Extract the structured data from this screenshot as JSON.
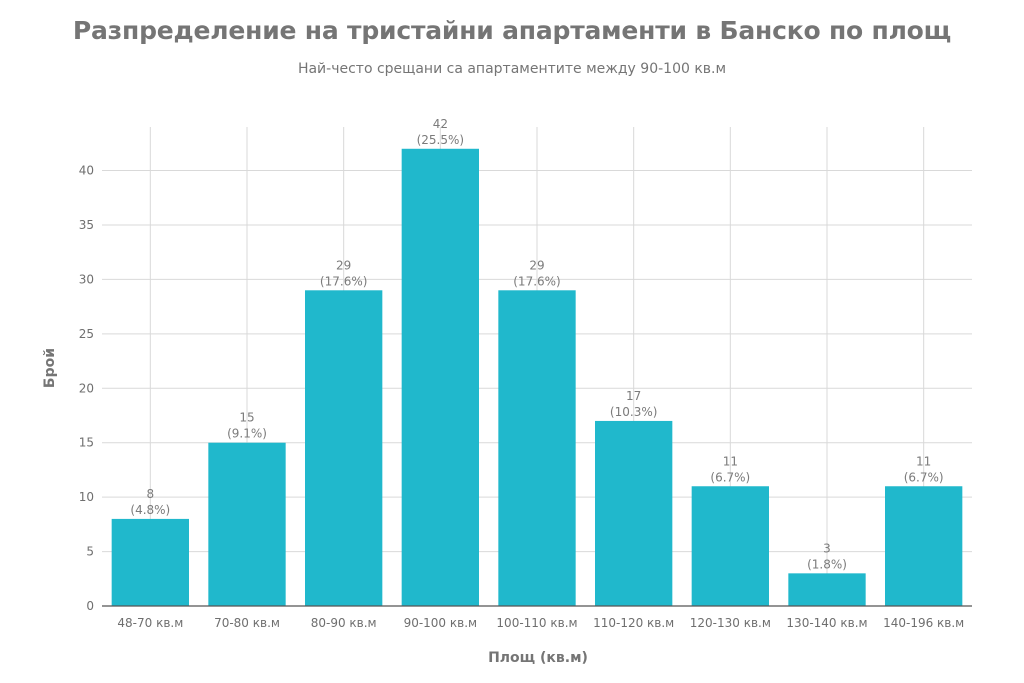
{
  "chart_data": {
    "type": "bar",
    "title": "Разпределение на тристайни апартаменти в Банско по площ",
    "subtitle": "Най-често срещани са апартаментите между 90-100 кв.м",
    "xlabel": "Площ (кв.м)",
    "ylabel": "Брой",
    "categories": [
      "48-70 кв.м",
      "70-80 кв.м",
      "80-90 кв.м",
      "90-100 кв.м",
      "100-110 кв.м",
      "110-120 кв.м",
      "120-130 кв.м",
      "130-140 кв.м",
      "140-196 кв.м"
    ],
    "values": [
      8,
      15,
      29,
      42,
      29,
      17,
      11,
      3,
      11
    ],
    "percent_labels": [
      "(4.8%)",
      "(9.1%)",
      "(17.6%)",
      "(25.5%)",
      "(17.6%)",
      "(10.3%)",
      "(6.7%)",
      "(1.8%)",
      "(6.7%)"
    ],
    "ylim": [
      0,
      44
    ],
    "yticks": [
      0,
      5,
      10,
      15,
      20,
      25,
      30,
      35,
      40
    ],
    "grid": true,
    "legend": "none",
    "bar_color": "#20b8cc",
    "grid_color": "#d9d9d9",
    "axis_color": "#555555"
  }
}
